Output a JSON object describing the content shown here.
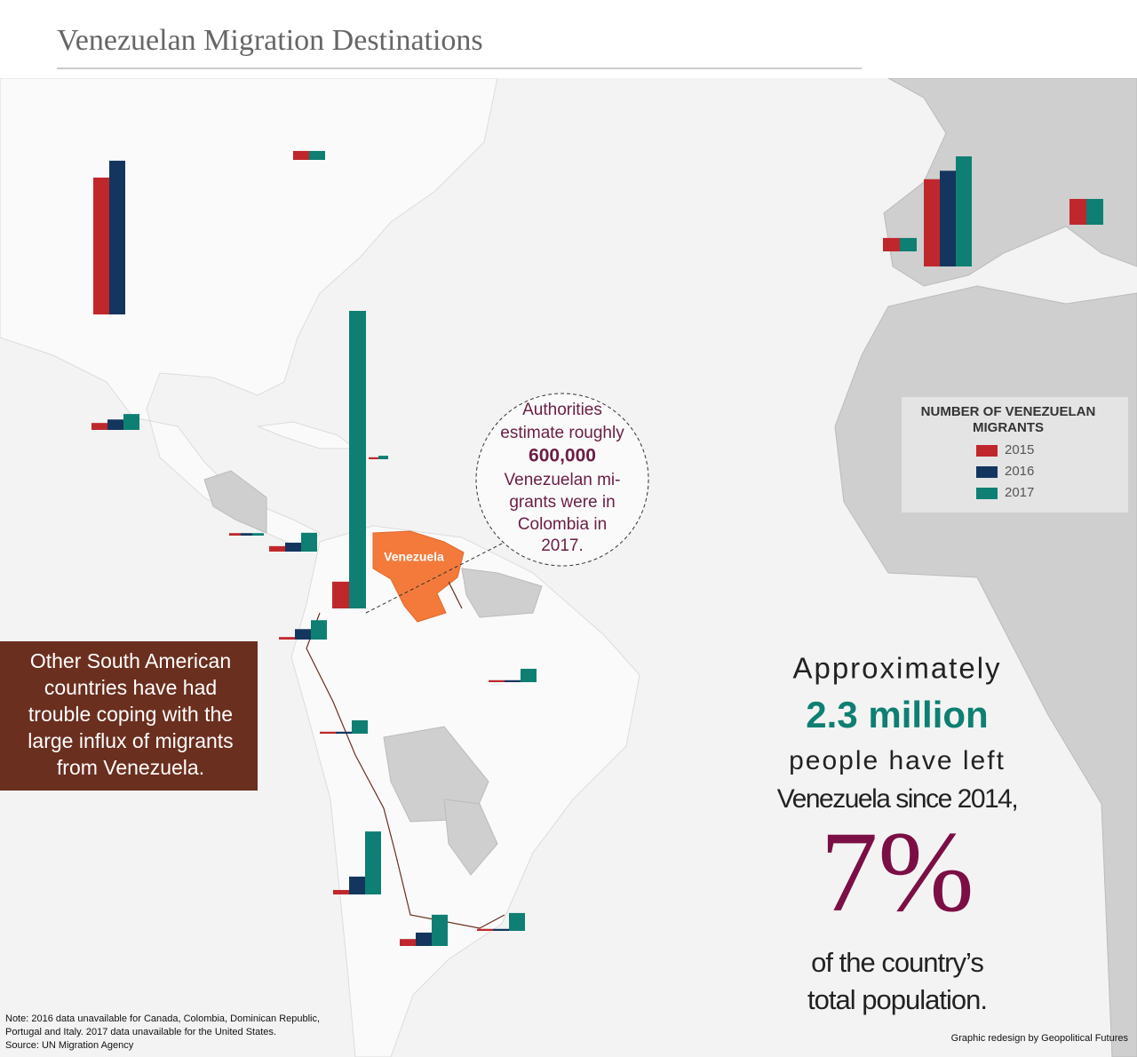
{
  "chart_data": {
    "type": "bar",
    "title": "Venezuelan Migration Destinations",
    "country_label": "Venezuela",
    "legend_title": [
      "NUMBER OF VENEZUELAN",
      "MIGRANTS"
    ],
    "series": [
      {
        "name": "2015",
        "color": "#c0272d",
        "values": [
          276000,
          18000,
          14000,
          4000,
          5000,
          11000,
          54000,
          5000,
          4000,
          4000,
          9000,
          14000,
          4000,
          176000,
          27000,
          52000
        ]
      },
      {
        "name": "2016",
        "color": "#14365e",
        "values": [
          310000,
          null,
          21000,
          null,
          5000,
          18000,
          null,
          21000,
          4000,
          4000,
          36000,
          27000,
          4000,
          193000,
          null,
          null
        ]
      },
      {
        "name": "2017",
        "color": "#0e7f72",
        "values": [
          null,
          18000,
          32000,
          7000,
          5000,
          38000,
          600000,
          39000,
          27000,
          27000,
          127000,
          63000,
          36000,
          222000,
          27000,
          52000
        ]
      }
    ],
    "callout": [
      "Authorities",
      "estimate roughly",
      "600,000",
      "Venezuelan mi-",
      "grants were in",
      "Colombia in",
      "2017."
    ],
    "side_note": [
      "Other South American",
      "countries have had",
      "trouble coping with the",
      "large influx of migrants",
      "from Venezuela."
    ],
    "stats": [
      "Approximately",
      "2.3 million",
      "people have left",
      "Venezuela since 2014,",
      "7%",
      "of the country’s",
      "total population."
    ],
    "note": [
      "Note: 2016 data unavailable for Canada, Colombia, Dominican Republic,",
      "Portugal and Italy. 2017 data unavailable for the United States.",
      "Source: UN Migration Agency"
    ],
    "credit": "Graphic redesign by Geopolitical Futures"
  }
}
